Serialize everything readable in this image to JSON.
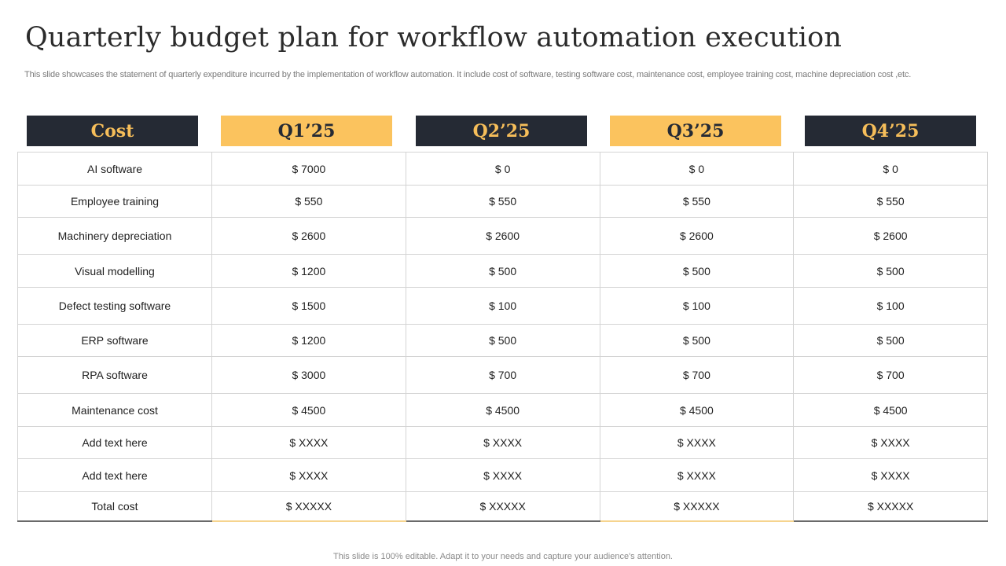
{
  "title": "Quarterly budget plan for workflow automation execution",
  "subtitle": "This slide showcases the statement of quarterly expenditure incurred by the implementation of workflow automation. It include cost of software, testing software cost, maintenance cost, employee training cost, machine depreciation cost ,etc.",
  "headers": [
    "Cost",
    "Q1’25",
    "Q2’25",
    "Q3’25",
    "Q4’25"
  ],
  "colors": {
    "dark": "#252a34",
    "gold": "#fbc35e"
  },
  "rows": [
    {
      "label": "AI software",
      "values": [
        "$ 7000",
        "$ 0",
        "$ 0",
        "$ 0"
      ]
    },
    {
      "label": "Employee training",
      "values": [
        "$ 550",
        "$ 550",
        "$ 550",
        "$ 550"
      ]
    },
    {
      "label": "Machinery depreciation",
      "values": [
        "$ 2600",
        "$ 2600",
        "$ 2600",
        "$ 2600"
      ]
    },
    {
      "label": "Visual modelling",
      "values": [
        "$ 1200",
        "$ 500",
        "$ 500",
        "$ 500"
      ]
    },
    {
      "label": "Defect testing software",
      "values": [
        "$ 1500",
        "$ 100",
        "$ 100",
        "$ 100"
      ]
    },
    {
      "label": "ERP software",
      "values": [
        "$ 1200",
        "$ 500",
        "$ 500",
        "$ 500"
      ]
    },
    {
      "label": "RPA software",
      "values": [
        "$ 3000",
        "$ 700",
        "$ 700",
        "$ 700"
      ]
    },
    {
      "label": "Maintenance  cost",
      "values": [
        "$ 4500",
        "$ 4500",
        "$ 4500",
        "$ 4500"
      ]
    },
    {
      "label": "Add text here",
      "values": [
        "$ XXXX",
        "$ XXXX",
        "$ XXXX",
        "$ XXXX"
      ]
    },
    {
      "label": "Add text here",
      "values": [
        "$ XXXX",
        "$ XXXX",
        "$ XXXX",
        "$ XXXX"
      ]
    },
    {
      "label": "Total cost",
      "values": [
        "$ XXXXX",
        "$ XXXXX",
        "$ XXXXX",
        "$ XXXXX"
      ]
    }
  ],
  "footer": "This slide is 100% editable. Adapt it to your needs and capture your audience's attention."
}
